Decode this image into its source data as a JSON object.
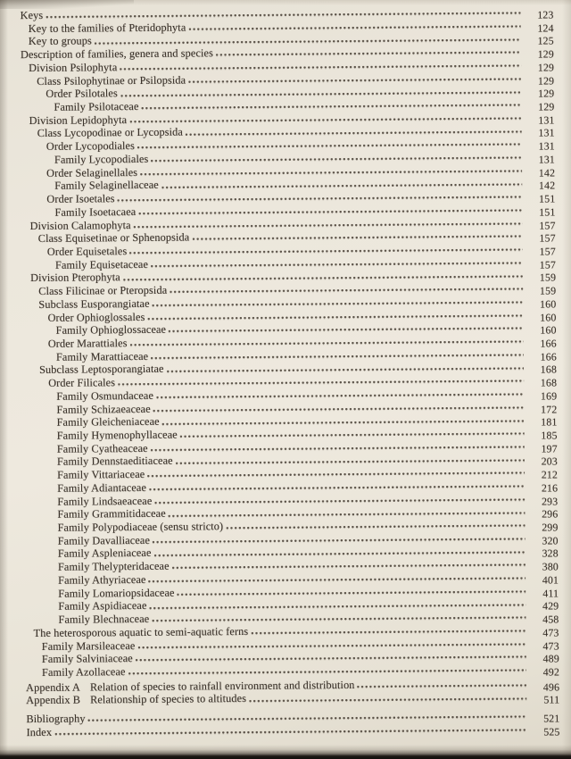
{
  "page": {
    "kind": "scanned book table of contents",
    "paper_color": "#ece7dc",
    "ink_color": "#3a322a",
    "subject": "Pteridophyta (ferns) classification contents"
  },
  "toc": {
    "entries": [
      {
        "label": "Keys",
        "level": 0,
        "page": "123"
      },
      {
        "label": "Key to the families of Pteridophyta",
        "level": 1,
        "page": "124"
      },
      {
        "label": "Key to groups",
        "level": 1,
        "page": "125"
      },
      {
        "label": "Description of families, genera and species",
        "level": 0,
        "page": "129"
      },
      {
        "label": "Division Psilophyta",
        "level": 1,
        "page": "129"
      },
      {
        "label": "Class Psilophytinae or Psilopsida",
        "level": 2,
        "page": "129"
      },
      {
        "label": "Order Psilotales",
        "level": 3,
        "page": "129"
      },
      {
        "label": "Family Psilotaceae",
        "level": 4,
        "page": "129"
      },
      {
        "label": "Division Lepidophyta",
        "level": 1,
        "page": "131"
      },
      {
        "label": "Class Lycopodinae or Lycopsida",
        "level": 2,
        "page": "131"
      },
      {
        "label": "Order Lycopodiales",
        "level": 3,
        "page": "131"
      },
      {
        "label": "Family Lycopodiales",
        "level": 4,
        "page": "131"
      },
      {
        "label": "Order Selaginellales",
        "level": 3,
        "page": "142"
      },
      {
        "label": "Family Selaginellaceae",
        "level": 4,
        "page": "142"
      },
      {
        "label": "Order Isoetales",
        "level": 3,
        "page": "151"
      },
      {
        "label": "Family Isoetacaea",
        "level": 4,
        "page": "151"
      },
      {
        "label": "Division Calamophyta",
        "level": 1,
        "page": "157"
      },
      {
        "label": "Class Equisetinae or Sphenopsida",
        "level": 2,
        "page": "157"
      },
      {
        "label": "Order Equisetales",
        "level": 3,
        "page": "157"
      },
      {
        "label": "Family Equisetaceae",
        "level": 4,
        "page": "157"
      },
      {
        "label": "Division Pterophyta",
        "level": 1,
        "page": "159"
      },
      {
        "label": "Class Filicinae or Pteropsida",
        "level": 2,
        "page": "159"
      },
      {
        "label": "Subclass Eusporangiatae",
        "level": 2,
        "page": "160"
      },
      {
        "label": "Order Ophioglossales",
        "level": 3,
        "page": "160"
      },
      {
        "label": "Family Ophioglossaceae",
        "level": 4,
        "page": "160"
      },
      {
        "label": "Order Marattiales",
        "level": 3,
        "page": "166"
      },
      {
        "label": "Family Marattiaceae",
        "level": 4,
        "page": "166"
      },
      {
        "label": "Subclass Leptosporangiatae",
        "level": 2,
        "page": "168"
      },
      {
        "label": "Order Filicales",
        "level": 3,
        "page": "168"
      },
      {
        "label": "Family Osmundaceae",
        "level": 4,
        "page": "169"
      },
      {
        "label": "Family Schizaeaceae",
        "level": 4,
        "page": "172"
      },
      {
        "label": "Family Gleicheniaceae",
        "level": 4,
        "page": "181"
      },
      {
        "label": "Family Hymenophyllaceae",
        "level": 4,
        "page": "185"
      },
      {
        "label": "Family Cyatheaceae",
        "level": 4,
        "page": "197"
      },
      {
        "label": "Family Dennstaeditiaceae",
        "level": 4,
        "page": "203"
      },
      {
        "label": "Family Vittariaceae",
        "level": 4,
        "page": "212"
      },
      {
        "label": "Family Adiantaceae",
        "level": 4,
        "page": "216"
      },
      {
        "label": "Family Lindsaeaceae",
        "level": 4,
        "page": "293"
      },
      {
        "label": "Family Grammitidaceae",
        "level": 4,
        "page": "296"
      },
      {
        "label": "Family Polypodiaceae (sensu stricto)",
        "level": 4,
        "page": "299"
      },
      {
        "label": "Family Davalliaceae",
        "level": 4,
        "page": "320"
      },
      {
        "label": "Family Aspleniaceae",
        "level": 4,
        "page": "328"
      },
      {
        "label": "Family Thelypteridaceae",
        "level": 4,
        "page": "380"
      },
      {
        "label": "Family Athyriaceae",
        "level": 4,
        "page": "401"
      },
      {
        "label": "Family Lomariopsidaceae",
        "level": 4,
        "page": "411"
      },
      {
        "label": "Family Aspidiaceae",
        "level": 4,
        "page": "429"
      },
      {
        "label": "Family Blechnaceae",
        "level": 4,
        "page": "458"
      },
      {
        "label": "The heterosporous aquatic to semi-aquatic ferns",
        "level": 1,
        "page": "473"
      },
      {
        "label": "Family Marsileaceae",
        "level": 2,
        "page": "473"
      },
      {
        "label": "Family Salviniaceae",
        "level": 2,
        "page": "489"
      },
      {
        "label": "Family Azollaceae",
        "level": 2,
        "page": "492"
      },
      {
        "prefix": "Appendix A",
        "label": "Relation of species to rainfall environment and distribution",
        "level": 0,
        "page": "496",
        "gap_before": 2
      },
      {
        "prefix": "Appendix B",
        "label": "Relationship of species to altitudes",
        "level": 0,
        "page": "511"
      },
      {
        "label": "Bibliography",
        "level": 0,
        "page": "521",
        "gap_before": 6
      },
      {
        "label": "Index",
        "level": 0,
        "page": "525"
      }
    ]
  }
}
